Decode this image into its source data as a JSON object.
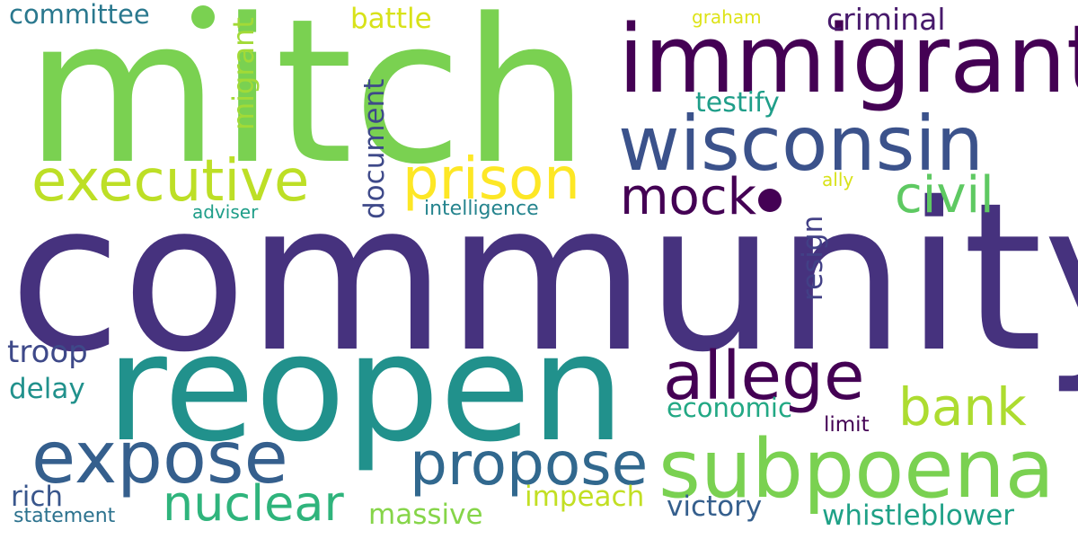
{
  "word_cloud": {
    "background": "#ffffff",
    "words": {
      "community": "community",
      "mitch": "mitch",
      "reopen": "reopen",
      "immigrant": "immigrant",
      "wisconsin": "wisconsin",
      "subpoena": "subpoena",
      "expose": "expose",
      "allege": "allege",
      "executive": "executive",
      "prison": "prison",
      "propose": "propose",
      "nuclear": "nuclear",
      "bank": "bank",
      "civil": "civil",
      "mock": "mock",
      "criminal": "criminal",
      "battle": "battle",
      "committee": "committee",
      "graham": "graham",
      "testify": "testify",
      "ally": "ally",
      "adviser": "adviser",
      "intelligence": "intelligence",
      "troop": "troop",
      "delay": "delay",
      "economic": "economic",
      "limit": "limit",
      "rich": "rich",
      "statement": "statement",
      "massive": "massive",
      "impeach": "impeach",
      "victory": "victory",
      "whistleblower": "whistleblower",
      "migrant": "migrant",
      "document": "document",
      "resign": "resign"
    },
    "palette": [
      "#440154",
      "#46327e",
      "#3b528b",
      "#2a788e",
      "#21918c",
      "#22a884",
      "#5ec962",
      "#7ad151",
      "#bddf26",
      "#fde725"
    ]
  }
}
